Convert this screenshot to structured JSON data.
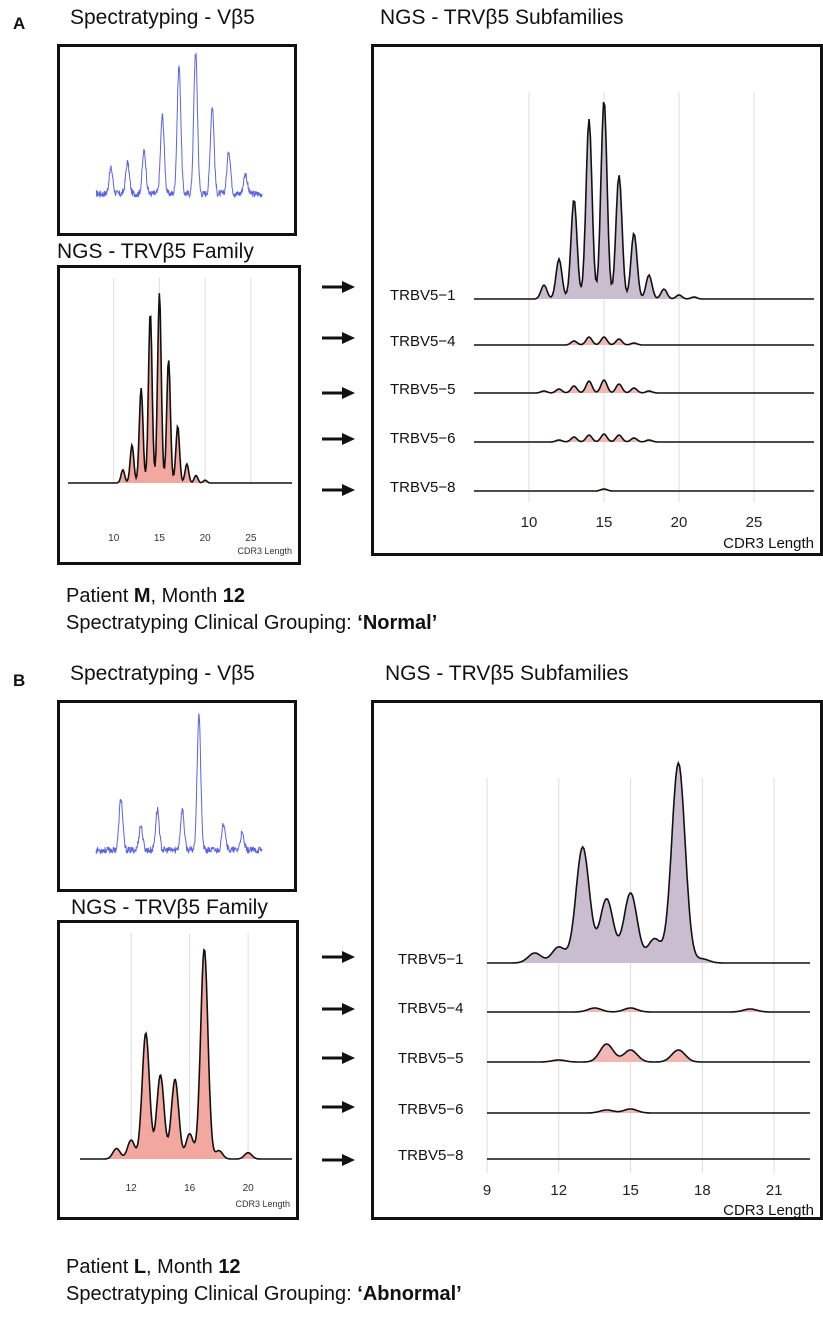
{
  "panels": [
    {
      "letter": "A",
      "spectra_title": "Spectratyping - Vβ5",
      "family_title": "NGS - TRVβ5 Family",
      "subfam_title": "NGS - TRVβ5 Subfamilies",
      "caption_patient_prefix": "Patient ",
      "caption_patient": "M",
      "caption_month_prefix": ", Month ",
      "caption_month": "12",
      "caption_grouping_prefix": "Spectratyping Clinical Grouping: ",
      "caption_grouping": "‘Normal’"
    },
    {
      "letter": "B",
      "spectra_title": "Spectratyping - Vβ5",
      "family_title": "NGS - TRVβ5 Family",
      "subfam_title": "NGS - TRVβ5 Subfamilies",
      "caption_patient_prefix": "Patient ",
      "caption_patient": "L",
      "caption_month_prefix": ", Month ",
      "caption_month": "12",
      "caption_grouping_prefix": "Spectratyping Clinical Grouping: ",
      "caption_grouping": "‘Abnormal’"
    }
  ],
  "colors": {
    "spectratype_line": "#5b63e6",
    "family_fill": "#f2a89f",
    "subfamily_fill": "#cbbdd0",
    "subfamily_minor_fill": "#f0b7b4",
    "gridline": "#dddddd",
    "frame": "#111111"
  },
  "chart_data": [
    {
      "id": "A-spectratype",
      "type": "line",
      "description_source": "Spectratyping - Vβ5 (Patient M)",
      "axes_shown": false,
      "peaks": [
        {
          "pos": 0.09,
          "height": 0.18
        },
        {
          "pos": 0.19,
          "height": 0.22
        },
        {
          "pos": 0.29,
          "height": 0.3
        },
        {
          "pos": 0.4,
          "height": 0.55
        },
        {
          "pos": 0.5,
          "height": 0.9
        },
        {
          "pos": 0.6,
          "height": 1.0
        },
        {
          "pos": 0.7,
          "height": 0.62
        },
        {
          "pos": 0.8,
          "height": 0.3
        },
        {
          "pos": 0.9,
          "height": 0.14
        }
      ]
    },
    {
      "id": "A-family",
      "type": "area",
      "xlabel": "CDR3 Length",
      "xticks": [
        10,
        15,
        20,
        25
      ],
      "xlim": [
        5,
        29.5
      ],
      "grid": true,
      "peaks": [
        {
          "x": 11,
          "y": 0.07
        },
        {
          "x": 12,
          "y": 0.2
        },
        {
          "x": 13,
          "y": 0.5
        },
        {
          "x": 14,
          "y": 0.9
        },
        {
          "x": 15,
          "y": 1.0
        },
        {
          "x": 16,
          "y": 0.65
        },
        {
          "x": 17,
          "y": 0.3
        },
        {
          "x": 18,
          "y": 0.1
        },
        {
          "x": 19,
          "y": 0.04
        },
        {
          "x": 20,
          "y": 0.015
        }
      ]
    },
    {
      "id": "A-subfamilies",
      "type": "area",
      "xlabel": "CDR3 Length",
      "xticks": [
        10,
        15,
        20,
        25
      ],
      "xlim": [
        7,
        29
      ],
      "grid": true,
      "series": [
        {
          "name": "TRBV5−1",
          "fill": "subfamily",
          "peaks": [
            {
              "x": 11,
              "y": 0.07
            },
            {
              "x": 12,
              "y": 0.2
            },
            {
              "x": 13,
              "y": 0.5
            },
            {
              "x": 14,
              "y": 0.9
            },
            {
              "x": 15,
              "y": 1.0
            },
            {
              "x": 16,
              "y": 0.62
            },
            {
              "x": 17,
              "y": 0.33
            },
            {
              "x": 18,
              "y": 0.12
            },
            {
              "x": 19,
              "y": 0.05
            },
            {
              "x": 20,
              "y": 0.02
            },
            {
              "x": 21,
              "y": 0.01
            }
          ]
        },
        {
          "name": "TRBV5−4",
          "fill": "minor",
          "peaks": [
            {
              "x": 13,
              "y": 0.02
            },
            {
              "x": 14,
              "y": 0.04
            },
            {
              "x": 15,
              "y": 0.04
            },
            {
              "x": 16,
              "y": 0.03
            },
            {
              "x": 17,
              "y": 0.01
            }
          ]
        },
        {
          "name": "TRBV5−5",
          "fill": "minor",
          "peaks": [
            {
              "x": 11,
              "y": 0.01
            },
            {
              "x": 12,
              "y": 0.02
            },
            {
              "x": 13,
              "y": 0.035
            },
            {
              "x": 14,
              "y": 0.06
            },
            {
              "x": 15,
              "y": 0.065
            },
            {
              "x": 16,
              "y": 0.045
            },
            {
              "x": 17,
              "y": 0.025
            },
            {
              "x": 18,
              "y": 0.01
            }
          ]
        },
        {
          "name": "TRBV5−6",
          "fill": "minor",
          "peaks": [
            {
              "x": 12,
              "y": 0.01
            },
            {
              "x": 13,
              "y": 0.025
            },
            {
              "x": 14,
              "y": 0.035
            },
            {
              "x": 15,
              "y": 0.04
            },
            {
              "x": 16,
              "y": 0.035
            },
            {
              "x": 17,
              "y": 0.02
            },
            {
              "x": 18,
              "y": 0.01
            }
          ]
        },
        {
          "name": "TRBV5−8",
          "fill": "minor",
          "peaks": [
            {
              "x": 15,
              "y": 0.01
            }
          ]
        }
      ]
    },
    {
      "id": "B-spectratype",
      "type": "line",
      "description_source": "Spectratyping - Vβ5 (Patient L)",
      "axes_shown": false,
      "peaks": [
        {
          "pos": 0.15,
          "height": 0.38
        },
        {
          "pos": 0.27,
          "height": 0.18
        },
        {
          "pos": 0.37,
          "height": 0.3
        },
        {
          "pos": 0.52,
          "height": 0.3
        },
        {
          "pos": 0.62,
          "height": 1.0
        },
        {
          "pos": 0.77,
          "height": 0.2
        },
        {
          "pos": 0.88,
          "height": 0.12
        }
      ]
    },
    {
      "id": "B-family",
      "type": "area",
      "xlabel": "CDR3 Length",
      "xticks": [
        12,
        16,
        20
      ],
      "xlim": [
        8.5,
        23
      ],
      "grid": true,
      "peaks": [
        {
          "x": 11,
          "y": 0.05
        },
        {
          "x": 12,
          "y": 0.09
        },
        {
          "x": 13,
          "y": 0.6
        },
        {
          "x": 14,
          "y": 0.4
        },
        {
          "x": 15,
          "y": 0.38
        },
        {
          "x": 16,
          "y": 0.12
        },
        {
          "x": 17,
          "y": 1.0
        },
        {
          "x": 18,
          "y": 0.04
        },
        {
          "x": 20,
          "y": 0.03
        }
      ]
    },
    {
      "id": "B-subfamilies",
      "type": "area",
      "xlabel": "CDR3 Length",
      "xticks": [
        9,
        12,
        15,
        18,
        21
      ],
      "xlim": [
        9,
        22.5
      ],
      "grid": true,
      "series": [
        {
          "name": "TRBV5−1",
          "fill": "subfamily",
          "peaks": [
            {
              "x": 11,
              "y": 0.05
            },
            {
              "x": 12,
              "y": 0.08
            },
            {
              "x": 13,
              "y": 0.58
            },
            {
              "x": 14,
              "y": 0.32
            },
            {
              "x": 15,
              "y": 0.35
            },
            {
              "x": 16,
              "y": 0.12
            },
            {
              "x": 17,
              "y": 1.0
            },
            {
              "x": 18,
              "y": 0.02
            }
          ]
        },
        {
          "name": "TRBV5−4",
          "fill": "minor",
          "peaks": [
            {
              "x": 13.5,
              "y": 0.02
            },
            {
              "x": 15,
              "y": 0.02
            },
            {
              "x": 20,
              "y": 0.015
            }
          ]
        },
        {
          "name": "TRBV5−5",
          "fill": "minor",
          "peaks": [
            {
              "x": 12,
              "y": 0.01
            },
            {
              "x": 14,
              "y": 0.09
            },
            {
              "x": 15,
              "y": 0.06
            },
            {
              "x": 17,
              "y": 0.06
            }
          ]
        },
        {
          "name": "TRBV5−6",
          "fill": "minor",
          "peaks": [
            {
              "x": 14,
              "y": 0.015
            },
            {
              "x": 15,
              "y": 0.02
            }
          ]
        },
        {
          "name": "TRBV5−8",
          "fill": "minor",
          "peaks": []
        }
      ]
    }
  ]
}
